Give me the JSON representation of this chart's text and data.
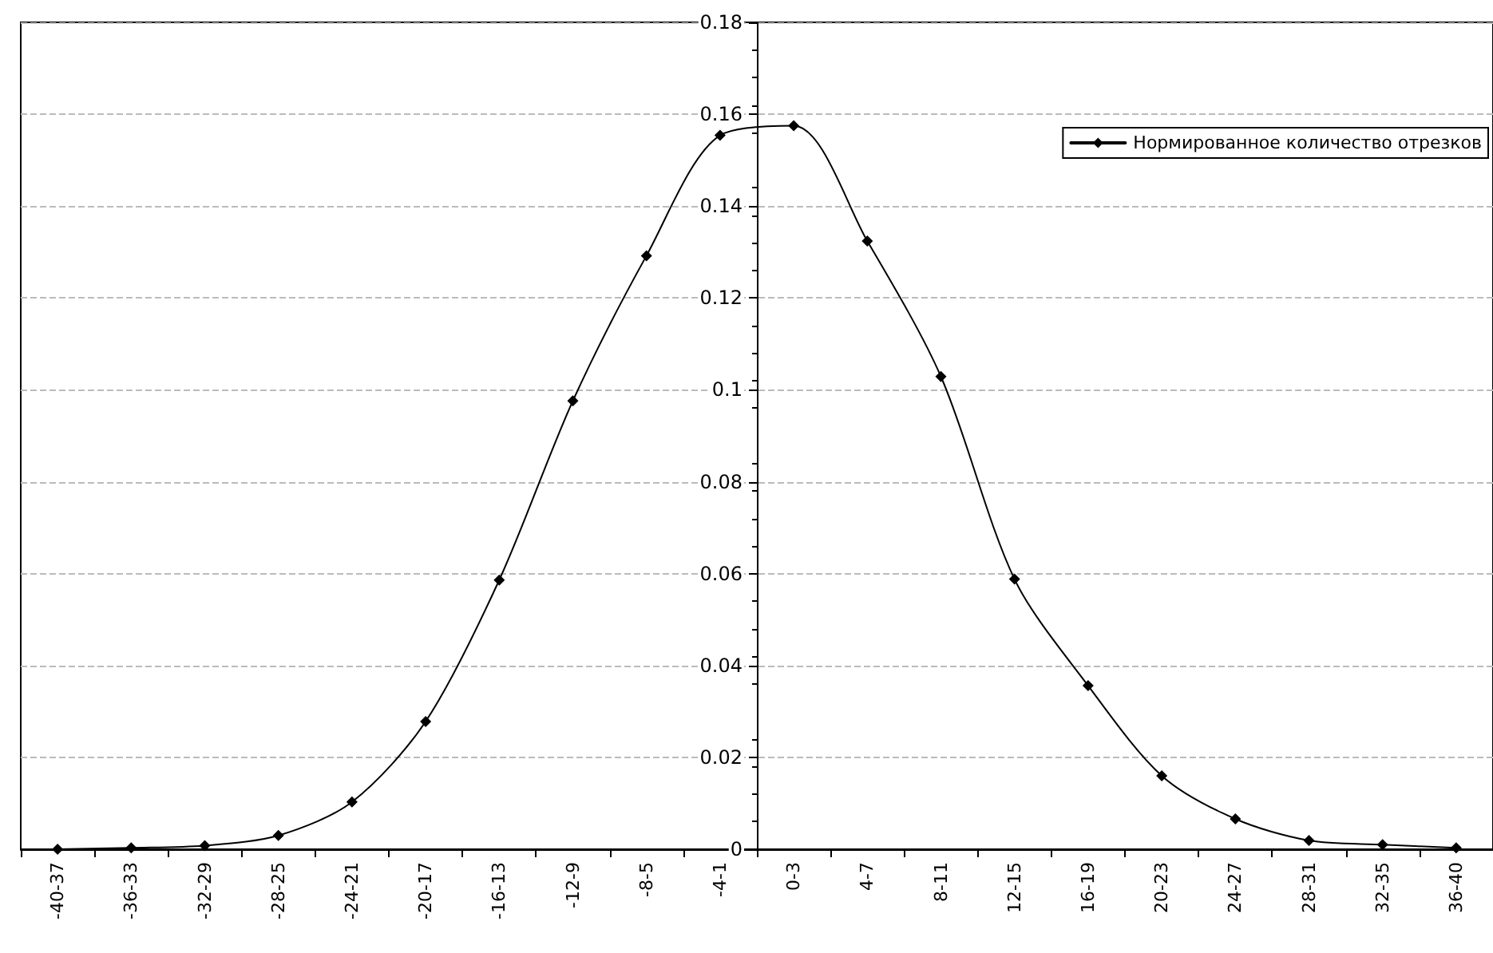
{
  "chart_data": {
    "type": "line",
    "categories": [
      "-40-37",
      "-36-33",
      "-32-29",
      "-28-25",
      "-24-21",
      "-20-17",
      "-16-13",
      "-12-9",
      "-8-5",
      "-4-1",
      "0-3",
      "4-7",
      "8-11",
      "12-15",
      "16-19",
      "20-23",
      "24-27",
      "28-31",
      "32-35",
      "36-40"
    ],
    "series": [
      {
        "name": "Нормированное количество отрезков",
        "color": "#000000",
        "values": [
          0,
          0.0003,
          0.0008,
          0.003,
          0.0103,
          0.0278,
          0.0586,
          0.0976,
          0.1292,
          0.1554,
          0.1575,
          0.1324,
          0.1029,
          0.0588,
          0.0356,
          0.016,
          0.0066,
          0.0019,
          0.001,
          0.0003
        ]
      }
    ],
    "ylim": [
      0,
      0.18
    ],
    "yticks": [
      0,
      0.02,
      0.04,
      0.06,
      0.08,
      0.1,
      0.12,
      0.14,
      0.16,
      0.18
    ],
    "grid": "y",
    "legend": "top right",
    "marker": "diamond",
    "line_style": "solid"
  }
}
